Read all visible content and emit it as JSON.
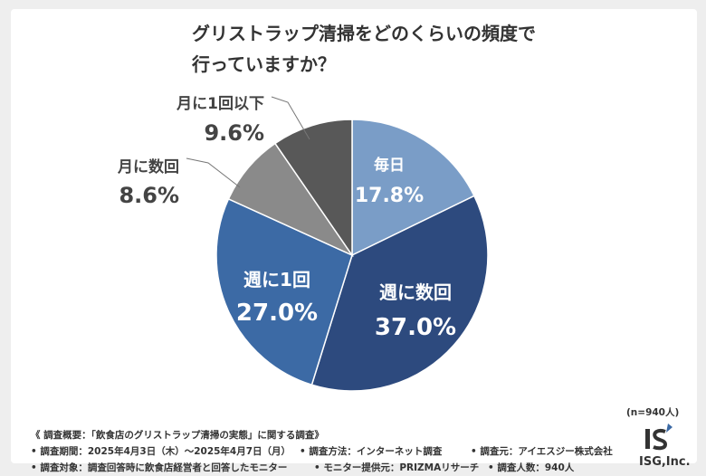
{
  "title": {
    "line1": "グリストラップ清掃をどのくらいの頻度で",
    "line2": "行っていますか？"
  },
  "chart_data": {
    "type": "pie",
    "title": "グリストラップ清掃をどのくらいの頻度で行っていますか？",
    "unit": "%",
    "slices": [
      {
        "label": "毎日",
        "value": 17.8,
        "value_text": "17.8%",
        "color": "#7a9dc7"
      },
      {
        "label": "週に数回",
        "value": 37.0,
        "value_text": "37.0%",
        "color": "#2d4a7e"
      },
      {
        "label": "週に1回",
        "value": 27.0,
        "value_text": "27.0%",
        "color": "#3c6aa5"
      },
      {
        "label": "月に数回",
        "value": 8.6,
        "value_text": "8.6%",
        "color": "#8a8a8a"
      },
      {
        "label": "月に1回以下",
        "value": 9.6,
        "value_text": "9.6%",
        "color": "#585858"
      }
    ],
    "start_angle_deg": 0,
    "direction": "clockwise"
  },
  "footer": {
    "overview": "《 調査概要：「飲食店のグリストラップ清掃の実態」に関する調査》",
    "period": "• 調査期間：2025年4月3日（木）～2025年4月7日（月）",
    "method": "• 調査方法：インターネット調査",
    "source": "• 調査元：アイエスジー株式会社",
    "target": "• 調査対象：調査回答時に飲食店経営者と回答したモニター",
    "provider": "• モニター提供元：PRIZMAリサーチ",
    "respondents": "• 調査人数：940人",
    "sample": "(n=940人)"
  },
  "logo": {
    "text": "ISG,Inc.",
    "mark": "IS",
    "accent": "#3c6aa5"
  }
}
